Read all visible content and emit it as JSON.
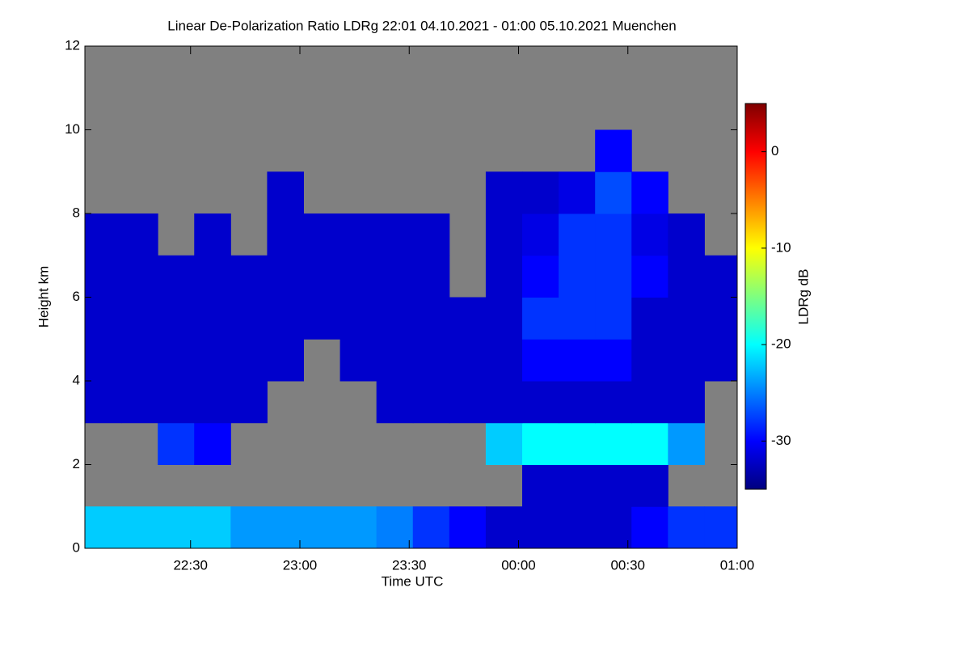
{
  "chart_data": {
    "type": "heatmap",
    "title": "Linear De-Polarization Ratio LDRg   22:01 04.10.2021 - 01:00 05.10.2021 Muenchen",
    "x_label": "Time UTC",
    "y_label": "Height km",
    "colorbar_label": "LDRg dB",
    "xlim": [
      1,
      180
    ],
    "xticks": [
      {
        "value": 30,
        "label": "22:30"
      },
      {
        "value": 60,
        "label": "23:00"
      },
      {
        "value": 90,
        "label": "23:30"
      },
      {
        "value": 120,
        "label": "00:00"
      },
      {
        "value": 150,
        "label": "00:30"
      },
      {
        "value": 180,
        "label": "01:00"
      }
    ],
    "ylim": [
      0,
      12
    ],
    "yticks": [
      0,
      2,
      4,
      6,
      8,
      10,
      12
    ],
    "clim": [
      -35,
      5
    ],
    "cticks": [
      0,
      -10,
      -20,
      -30
    ],
    "colormap": [
      "#00007f",
      "#0000ff",
      "#007fff",
      "#00ffff",
      "#7fff7f",
      "#ffff00",
      "#ff7f00",
      "#ff0000",
      "#7f0000"
    ],
    "missing_color": "#808080",
    "x_bins": [
      1,
      11,
      21,
      31,
      41,
      51,
      61,
      71,
      81,
      91,
      101,
      111,
      121,
      131,
      141,
      151,
      161,
      171,
      180
    ],
    "y_bins": [
      0,
      1,
      2,
      3,
      4,
      5,
      6,
      7,
      8,
      9,
      10,
      11,
      12
    ],
    "values": [
      [
        -22,
        -22,
        -22,
        -22,
        -24,
        -24,
        -24,
        -24,
        -25,
        -28,
        -30,
        -32,
        -32,
        -32,
        -32,
        -30,
        -28,
        -28
      ],
      [
        null,
        null,
        null,
        null,
        null,
        null,
        null,
        null,
        null,
        null,
        null,
        null,
        -32,
        -32,
        -32,
        -32,
        null,
        null
      ],
      [
        null,
        null,
        -28,
        -30,
        null,
        null,
        null,
        null,
        null,
        null,
        null,
        -22,
        -20,
        -20,
        -20,
        -20,
        -24,
        null
      ],
      [
        -32,
        -32,
        -32,
        -32,
        -32,
        null,
        null,
        null,
        -32,
        -32,
        -32,
        -32,
        -32,
        -32,
        -32,
        -32,
        -32,
        null
      ],
      [
        -32,
        -32,
        -32,
        -32,
        -32,
        -32,
        null,
        -32,
        -32,
        -32,
        -32,
        -32,
        -30,
        -30,
        -30,
        -32,
        -32,
        -32
      ],
      [
        -32,
        -32,
        -32,
        -32,
        -32,
        -32,
        -32,
        -32,
        -32,
        -32,
        -32,
        -32,
        -28,
        -28,
        -28,
        -32,
        -32,
        -32
      ],
      [
        -32,
        -32,
        -32,
        -32,
        -32,
        -32,
        -32,
        -32,
        -32,
        -32,
        null,
        -32,
        -30,
        -28,
        -28,
        -30,
        -32,
        -32
      ],
      [
        -32,
        -32,
        null,
        -32,
        null,
        -32,
        -32,
        -32,
        -32,
        -32,
        null,
        -32,
        -31,
        -28,
        -28,
        -31,
        -32,
        null
      ],
      [
        null,
        null,
        null,
        null,
        null,
        -32,
        null,
        null,
        null,
        null,
        null,
        -32,
        -32,
        -31,
        -27,
        -30,
        null,
        null
      ],
      [
        null,
        null,
        null,
        null,
        null,
        null,
        null,
        null,
        null,
        null,
        null,
        null,
        null,
        null,
        -30,
        null,
        null,
        null
      ],
      [
        null,
        null,
        null,
        null,
        null,
        null,
        null,
        null,
        null,
        null,
        null,
        null,
        null,
        null,
        null,
        null,
        null,
        null
      ],
      [
        null,
        null,
        null,
        null,
        null,
        null,
        null,
        null,
        null,
        null,
        null,
        null,
        null,
        null,
        null,
        null,
        null,
        null
      ]
    ]
  }
}
